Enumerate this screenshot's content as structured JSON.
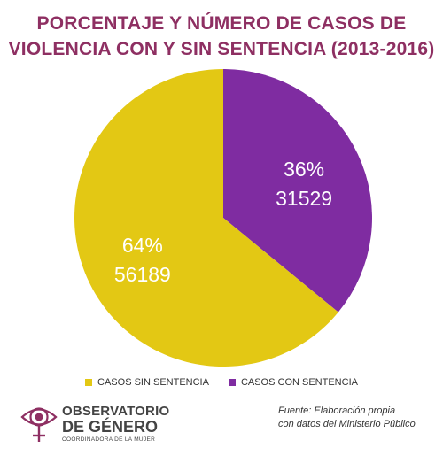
{
  "title": {
    "line1": "PORCENTAJE Y NÚMERO DE CASOS DE",
    "line2": "VIOLENCIA CON Y SIN SENTENCIA (2013-2016)"
  },
  "chart_data": {
    "type": "pie",
    "title": "PORCENTAJE Y NÚMERO DE CASOS DE VIOLENCIA CON Y SIN SENTENCIA (2013-2016)",
    "slices": [
      {
        "label": "CASOS CON SENTENCIA",
        "value": 31529,
        "percent": "36%",
        "value_label": "31529",
        "color": "#7f2ca1"
      },
      {
        "label": "CASOS SIN SENTENCIA",
        "value": 56189,
        "percent": "64%",
        "value_label": "56189",
        "color": "#e3c814"
      }
    ],
    "legend_placement": "bottom"
  },
  "legend": {
    "items": [
      {
        "label": "CASOS SIN SENTENCIA",
        "color": "#e3c814"
      },
      {
        "label": "CASOS CON SENTENCIA",
        "color": "#7f2ca1"
      }
    ]
  },
  "logo": {
    "line1": "OBSERVATORIO",
    "line2": "DE GÉNERO",
    "line3": "COORDINADORA DE LA MUJER",
    "icon": "venus-eye-icon",
    "color": "#8e2f62"
  },
  "source": {
    "line1": "Fuente: Elaboración propia",
    "line2": "con datos del Ministerio Público"
  }
}
